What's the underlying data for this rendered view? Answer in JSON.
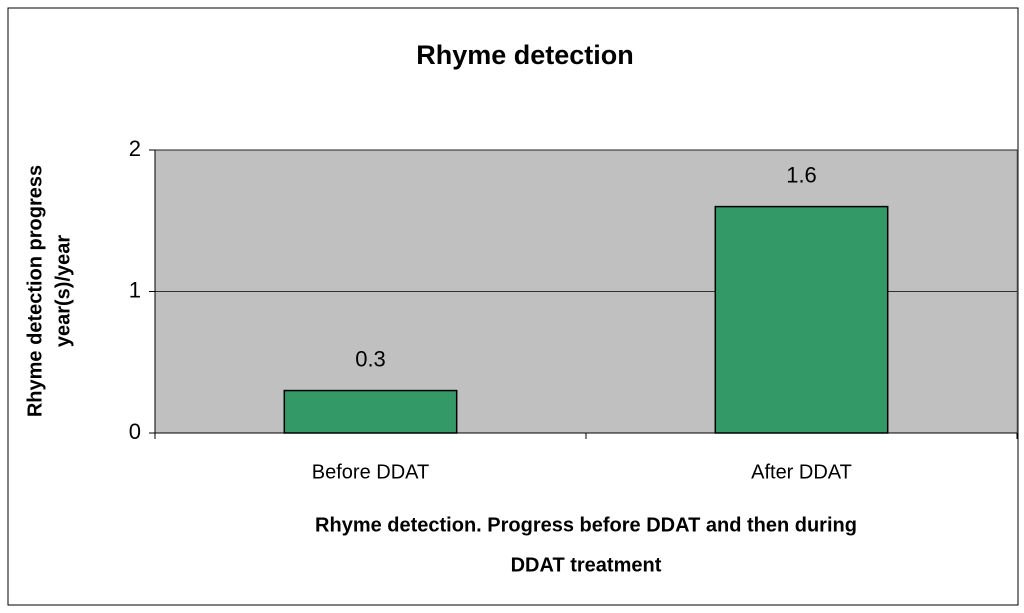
{
  "chart_data": {
    "type": "bar",
    "title": "Rhyme detection",
    "y_label": [
      "Rhyme detection progress",
      "year(s)/year"
    ],
    "x_label": [
      "Rhyme detection.  Progress before DDAT and then during",
      "DDAT treatment"
    ],
    "categories": [
      "Before DDAT",
      "After DDAT"
    ],
    "values": [
      0.3,
      1.6
    ],
    "color": "#339966",
    "ylim": [
      0,
      2
    ],
    "yticks": [
      0,
      1,
      2
    ],
    "grid": true
  }
}
